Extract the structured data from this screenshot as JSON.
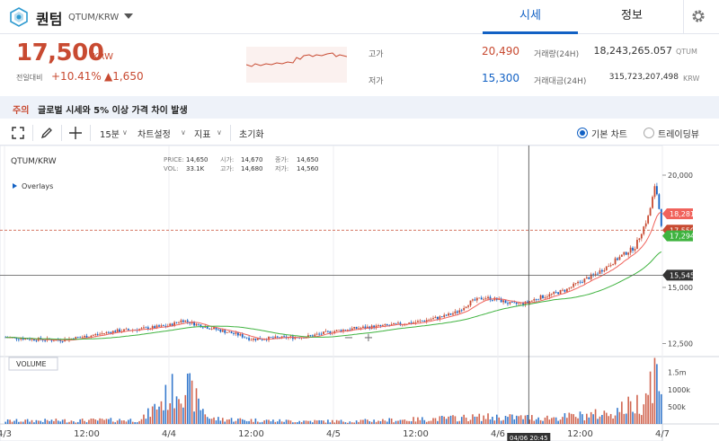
{
  "header": {
    "coin_name": "퀀텀",
    "pair": "QTUM/KRW",
    "tabs": [
      {
        "label": "시세",
        "active": true
      },
      {
        "label": "정보",
        "active": false
      }
    ]
  },
  "price": {
    "current": "17,500",
    "unit": "KRW",
    "compare_label": "전일대비",
    "change_rate": "+10.41%",
    "change_amount": "▲1,650"
  },
  "stats": {
    "high_label": "고가",
    "high_value": "20,490",
    "low_label": "저가",
    "low_value": "15,300",
    "volume_label": "거래량(24H)",
    "volume_value": "18,243,265.057",
    "volume_unit": "QTUM",
    "amount_label": "거래대금(24H)",
    "amount_value": "315,723,207,498",
    "amount_unit": "KRW"
  },
  "notice": {
    "tag": "주의",
    "message": "글로벌 시세와 5% 이상 가격 차이 발생"
  },
  "toolbar": {
    "interval": "15분",
    "chart_settings": "차트설정",
    "indicators": "지표",
    "reset": "초기화",
    "basic_chart": "기본 차트",
    "tradingview": "트레이딩뷰",
    "basic_selected": true
  },
  "colors": {
    "up": "#c84a31",
    "down": "#1261c4",
    "ma_short": "#f0635c",
    "ma_long": "#3fb33f",
    "accent": "#1261c4"
  },
  "chart_data": {
    "type": "candlestick",
    "symbol": "QTUM/KRW",
    "overlays_label": "Overlays",
    "ohlc_readout": {
      "price_label": "PRICE:",
      "price": "14,650",
      "open_label": "시가:",
      "open": "14,670",
      "close_label": "종가:",
      "close": "14,650",
      "vol_label": "VOL:",
      "vol": "33.1K",
      "high_label": "고가:",
      "high": "14,680",
      "low_label": "저가:",
      "low": "14,560"
    },
    "y_ticks": [
      "20,000",
      "15,000",
      "12,500"
    ],
    "y_tick_values": [
      20000,
      15000,
      12500
    ],
    "ylim": [
      12000,
      21000
    ],
    "x_ticks": [
      "4/3",
      "12:00",
      "4/4",
      "12:00",
      "4/5",
      "12:00",
      "4/6",
      "12:00",
      "4/7"
    ],
    "x_range_hours": [
      0,
      96
    ],
    "crosshair_time": "04/06 20:45",
    "price_markers": [
      {
        "label": "18,281",
        "value": 18281,
        "color": "#f0635c"
      },
      {
        "label": "17,550",
        "value": 17550,
        "color": "#c84a31"
      },
      {
        "label": "17,294",
        "value": 17294,
        "color": "#3fb33f"
      },
      {
        "label": "15,545",
        "value": 15545,
        "color": "#333333"
      }
    ],
    "volume_label": "VOLUME",
    "volume_ticks": [
      "1.5m",
      "1000k",
      "500k"
    ],
    "volume_tick_values": [
      1500000,
      1000000,
      500000
    ],
    "volume_max": 1700000,
    "series": [
      {
        "name": "price_anchor",
        "points": [
          [
            0,
            12780
          ],
          [
            4,
            12700
          ],
          [
            8,
            12650
          ],
          [
            12,
            12820
          ],
          [
            16,
            13050
          ],
          [
            20,
            13150
          ],
          [
            24,
            13300
          ],
          [
            26,
            13550
          ],
          [
            28,
            13350
          ],
          [
            30,
            13200
          ],
          [
            32,
            13050
          ],
          [
            34,
            12900
          ],
          [
            36,
            12700
          ],
          [
            40,
            12750
          ],
          [
            44,
            12800
          ],
          [
            48,
            13050
          ],
          [
            52,
            13200
          ],
          [
            56,
            13300
          ],
          [
            60,
            13450
          ],
          [
            64,
            13700
          ],
          [
            66,
            13900
          ],
          [
            68,
            14350
          ],
          [
            70,
            14550
          ],
          [
            72,
            14450
          ],
          [
            74,
            14250
          ],
          [
            76,
            14300
          ],
          [
            78,
            14550
          ],
          [
            80,
            14700
          ],
          [
            82,
            14900
          ],
          [
            84,
            15250
          ],
          [
            86,
            15550
          ],
          [
            88,
            15950
          ],
          [
            90,
            16400
          ],
          [
            92,
            16800
          ],
          [
            94,
            18200
          ],
          [
            95,
            19600
          ],
          [
            96,
            17500
          ]
        ]
      },
      {
        "name": "volume_anchor",
        "points": [
          [
            0,
            90000
          ],
          [
            10,
            100000
          ],
          [
            20,
            120000
          ],
          [
            26,
            1200000
          ],
          [
            30,
            150000
          ],
          [
            40,
            90000
          ],
          [
            50,
            80000
          ],
          [
            60,
            130000
          ],
          [
            70,
            200000
          ],
          [
            80,
            180000
          ],
          [
            88,
            300000
          ],
          [
            93,
            650000
          ],
          [
            95,
            1650000
          ],
          [
            96,
            450000
          ]
        ]
      }
    ]
  }
}
